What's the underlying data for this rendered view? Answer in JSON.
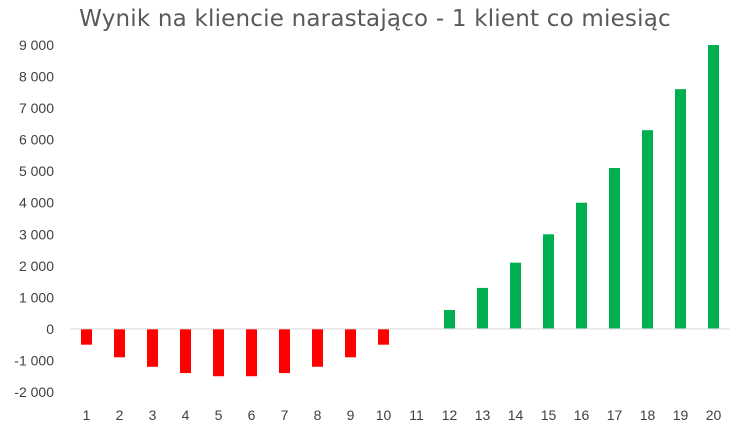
{
  "chart_data": {
    "type": "bar",
    "title": "Wynik na kliencie narastająco - 1 klient co miesiąc",
    "xlabel": "",
    "ylabel": "",
    "categories": [
      "1",
      "2",
      "3",
      "4",
      "5",
      "6",
      "7",
      "8",
      "9",
      "10",
      "11",
      "12",
      "13",
      "14",
      "15",
      "16",
      "17",
      "18",
      "19",
      "20"
    ],
    "values": [
      -500,
      -900,
      -1200,
      -1400,
      -1500,
      -1500,
      -1400,
      -1200,
      -900,
      -500,
      0,
      600,
      1300,
      2100,
      3000,
      4000,
      5100,
      6300,
      7600,
      9000
    ],
    "ylim": [
      -2000,
      9000
    ],
    "yticks": [
      -2000,
      -1000,
      0,
      1000,
      2000,
      3000,
      4000,
      5000,
      6000,
      7000,
      8000,
      9000
    ],
    "ytick_labels": [
      "-2 000",
      "-1 000",
      "0",
      "1 000",
      "2 000",
      "3 000",
      "4 000",
      "5 000",
      "6 000",
      "7 000",
      "8 000",
      "9 000"
    ],
    "grid": false,
    "legend": "none",
    "colors": {
      "negative": "#ff0000",
      "positive": "#00b050",
      "axis": "#d9d9d9",
      "text": "#404040",
      "title": "#595959"
    }
  }
}
